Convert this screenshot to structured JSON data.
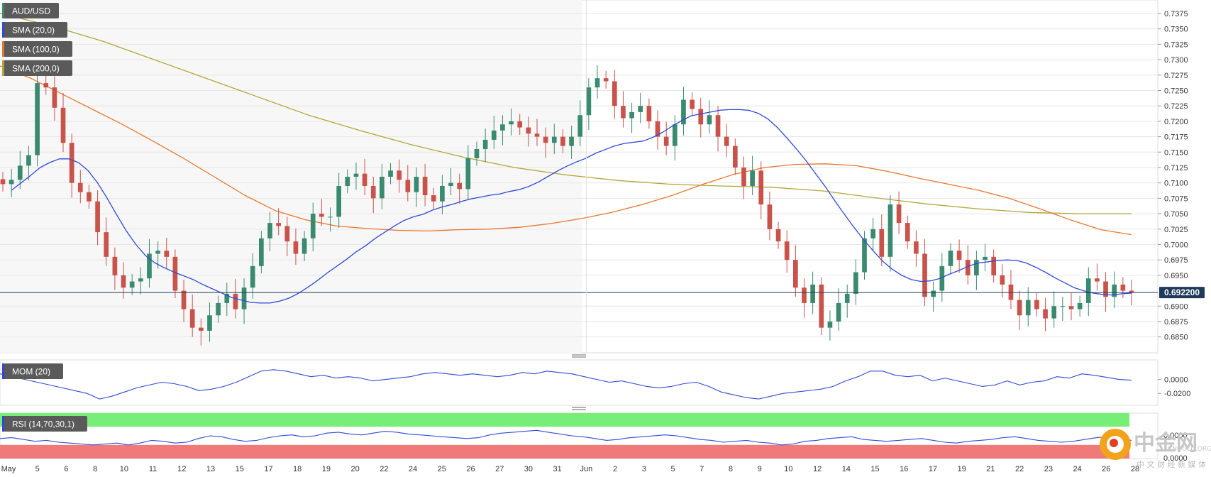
{
  "indicators": {
    "symbol": "AUD/USD",
    "sma20": "SMA (20,0)",
    "sma100": "SMA (100,0)",
    "sma200": "SMA (200,0)",
    "mom": "MOM (20)",
    "rsi": "RSI (14,70,30,1)"
  },
  "colors": {
    "up": "#3a8a6f",
    "down": "#c9524a",
    "sma20": "#2f4ad6",
    "sma100": "#e8772e",
    "sma200": "#b2a639",
    "rsi_over": "#77ee77",
    "rsi_under": "#f07a7a"
  },
  "price_label": "0.692200",
  "watermark": {
    "brand": "中金网",
    "sub": "中 文 财 经 新 媒 体",
    "url": "CNGOLD.ORG"
  },
  "chart_data": [
    {
      "type": "candlestick",
      "title": "AUD/USD",
      "ylim": [
        0.683,
        0.739
      ],
      "y_ticks": [
        "0.7375",
        "0.7350",
        "0.7325",
        "0.7300",
        "0.7275",
        "0.7250",
        "0.7225",
        "0.7200",
        "0.7175",
        "0.7150",
        "0.7125",
        "0.7100",
        "0.7075",
        "0.7050",
        "0.7025",
        "0.7000",
        "0.6975",
        "0.6950",
        "0.6900",
        "0.6875",
        "0.6850"
      ],
      "last_price": 0.6922,
      "x_labels": [
        "May",
        "5",
        "6",
        "8",
        "10",
        "11",
        "12",
        "13",
        "15",
        "17",
        "18",
        "19",
        "20",
        "22",
        "24",
        "25",
        "26",
        "27",
        "30",
        "31",
        "Jun",
        "2",
        "3",
        "5",
        "7",
        "8",
        "9",
        "10",
        "12",
        "14",
        "15",
        "16",
        "17",
        "19",
        "21",
        "22",
        "23",
        "24",
        "26",
        "28"
      ],
      "close": [
        0.7098,
        0.7105,
        0.7128,
        0.7145,
        0.7262,
        0.7255,
        0.7222,
        0.7165,
        0.71,
        0.7085,
        0.707,
        0.702,
        0.698,
        0.695,
        0.693,
        0.694,
        0.6945,
        0.6985,
        0.699,
        0.698,
        0.6925,
        0.6895,
        0.6865,
        0.686,
        0.6885,
        0.6905,
        0.692,
        0.6895,
        0.693,
        0.6965,
        0.701,
        0.7035,
        0.703,
        0.7005,
        0.6985,
        0.701,
        0.705,
        0.7045,
        0.7045,
        0.7095,
        0.711,
        0.7115,
        0.7095,
        0.7075,
        0.711,
        0.712,
        0.7105,
        0.7085,
        0.711,
        0.708,
        0.707,
        0.7095,
        0.71,
        0.709,
        0.714,
        0.7155,
        0.717,
        0.7185,
        0.7195,
        0.72,
        0.719,
        0.718,
        0.7175,
        0.7165,
        0.7175,
        0.716,
        0.7175,
        0.721,
        0.7255,
        0.727,
        0.7265,
        0.7225,
        0.7205,
        0.7215,
        0.7225,
        0.72,
        0.7175,
        0.716,
        0.7195,
        0.7235,
        0.722,
        0.7195,
        0.721,
        0.7175,
        0.716,
        0.7125,
        0.7095,
        0.712,
        0.7065,
        0.7025,
        0.7005,
        0.6975,
        0.693,
        0.6905,
        0.6935,
        0.6865,
        0.6875,
        0.6905,
        0.692,
        0.6955,
        0.701,
        0.7025,
        0.698,
        0.7065,
        0.7035,
        0.7005,
        0.6985,
        0.6915,
        0.6925,
        0.6965,
        0.699,
        0.6975,
        0.695,
        0.6975,
        0.698,
        0.695,
        0.6935,
        0.691,
        0.6885,
        0.691,
        0.6895,
        0.688,
        0.69,
        0.69,
        0.6895,
        0.6905,
        0.6945,
        0.694,
        0.6915,
        0.6935,
        0.6925,
        0.6922
      ],
      "sma20": [
        0.7088,
        0.71,
        0.7112,
        0.7125,
        0.7133,
        0.7139,
        0.7139,
        0.7133,
        0.712,
        0.71,
        0.7075,
        0.7048,
        0.7022,
        0.7,
        0.6982,
        0.697,
        0.6962,
        0.6955,
        0.6949,
        0.6943,
        0.6935,
        0.6928,
        0.6921,
        0.6914,
        0.691,
        0.6906,
        0.6905,
        0.6905,
        0.6908,
        0.6913,
        0.6921,
        0.6931,
        0.6942,
        0.6954,
        0.6965,
        0.6976,
        0.6988,
        0.6998,
        0.701,
        0.702,
        0.703,
        0.7039,
        0.7045,
        0.7049,
        0.7056,
        0.7061,
        0.7065,
        0.707,
        0.7074,
        0.7077,
        0.708,
        0.7082,
        0.7086,
        0.7089,
        0.7094,
        0.7101,
        0.711,
        0.7119,
        0.7127,
        0.7134,
        0.714,
        0.7148,
        0.7154,
        0.716,
        0.7164,
        0.7166,
        0.7168,
        0.7174,
        0.7182,
        0.7192,
        0.7201,
        0.7209,
        0.7212,
        0.7215,
        0.7218,
        0.7219,
        0.7219,
        0.7218,
        0.7213,
        0.7204,
        0.719,
        0.7173,
        0.7155,
        0.7136,
        0.7115,
        0.7094,
        0.7071,
        0.7049,
        0.7028,
        0.7008,
        0.699,
        0.6973,
        0.696,
        0.695,
        0.6943,
        0.694,
        0.6941,
        0.6945,
        0.6952,
        0.6958,
        0.6965,
        0.697,
        0.6972,
        0.6974,
        0.6975,
        0.6974,
        0.697,
        0.6963,
        0.6955,
        0.6946,
        0.6938,
        0.693,
        0.6925,
        0.6921,
        0.6919,
        0.6918,
        0.692,
        0.6921
      ],
      "sma100": [
        0.729,
        0.727,
        0.7245,
        0.722,
        0.7195,
        0.7168,
        0.714,
        0.711,
        0.708,
        0.7055,
        0.704,
        0.703,
        0.7026,
        0.7023,
        0.7022,
        0.7024,
        0.7025,
        0.7028,
        0.7034,
        0.7042,
        0.7052,
        0.7065,
        0.708,
        0.7098,
        0.7114,
        0.7125,
        0.713,
        0.7131,
        0.7128,
        0.7119,
        0.7108,
        0.7098,
        0.7088,
        0.7075,
        0.7058,
        0.704,
        0.7024,
        0.7016
      ],
      "sma200": [
        0.7375,
        0.7355,
        0.733,
        0.73,
        0.727,
        0.724,
        0.721,
        0.7185,
        0.7162,
        0.7142,
        0.7125,
        0.7113,
        0.7104,
        0.7098,
        0.7095,
        0.7093,
        0.7087,
        0.7076,
        0.7066,
        0.7058,
        0.7052,
        0.705,
        0.705
      ]
    },
    {
      "type": "line",
      "title": "MOM (20)",
      "y_ticks": [
        "0.0000",
        "-0.0200"
      ],
      "ylim": [
        -0.034,
        0.024
      ],
      "values": [
        0.008,
        0.004,
        0.0,
        -0.004,
        -0.008,
        -0.012,
        -0.016,
        -0.02,
        -0.028,
        -0.024,
        -0.018,
        -0.012,
        -0.008,
        -0.004,
        -0.006,
        -0.01,
        -0.016,
        -0.014,
        -0.01,
        -0.004,
        0.004,
        0.012,
        0.014,
        0.012,
        0.008,
        0.004,
        0.006,
        0.002,
        0.004,
        0.002,
        -0.002,
        0.0,
        0.002,
        0.004,
        0.008,
        0.01,
        0.008,
        0.006,
        0.008,
        0.006,
        0.004,
        0.006,
        0.01,
        0.008,
        0.012,
        0.01,
        0.008,
        0.004,
        0.0,
        -0.004,
        -0.002,
        -0.006,
        -0.01,
        -0.012,
        -0.01,
        -0.006,
        -0.004,
        -0.01,
        -0.018,
        -0.022,
        -0.026,
        -0.028,
        -0.024,
        -0.02,
        -0.018,
        -0.016,
        -0.014,
        -0.01,
        -0.002,
        0.004,
        0.012,
        0.012,
        0.006,
        0.004,
        0.006,
        -0.002,
        0.002,
        -0.002,
        -0.006,
        -0.01,
        -0.008,
        -0.002,
        -0.008,
        -0.004,
        -0.002,
        0.004,
        0.002,
        0.008,
        0.006,
        0.003,
        0.0,
        -0.001
      ]
    },
    {
      "type": "line",
      "title": "RSI (14,70,30,1)",
      "ylim": [
        0,
        100
      ],
      "bands": [
        30,
        70
      ],
      "values": [
        44,
        46,
        42,
        38,
        40,
        36,
        34,
        32,
        30,
        32,
        34,
        30,
        34,
        40,
        38,
        34,
        36,
        44,
        50,
        48,
        42,
        38,
        40,
        46,
        50,
        52,
        48,
        50,
        56,
        58,
        54,
        52,
        56,
        60,
        58,
        54,
        52,
        50,
        48,
        46,
        44,
        46,
        52,
        56,
        58,
        60,
        62,
        58,
        54,
        50,
        48,
        44,
        40,
        42,
        46,
        48,
        50,
        52,
        50,
        46,
        42,
        40,
        36,
        38,
        40,
        36,
        34,
        30,
        32,
        38,
        40,
        44,
        46,
        48,
        42,
        40,
        38,
        40,
        42,
        44,
        40,
        36,
        34,
        38,
        40,
        42,
        46,
        48,
        44,
        40,
        38,
        36,
        38,
        42,
        46,
        48,
        44,
        40
      ]
    }
  ]
}
